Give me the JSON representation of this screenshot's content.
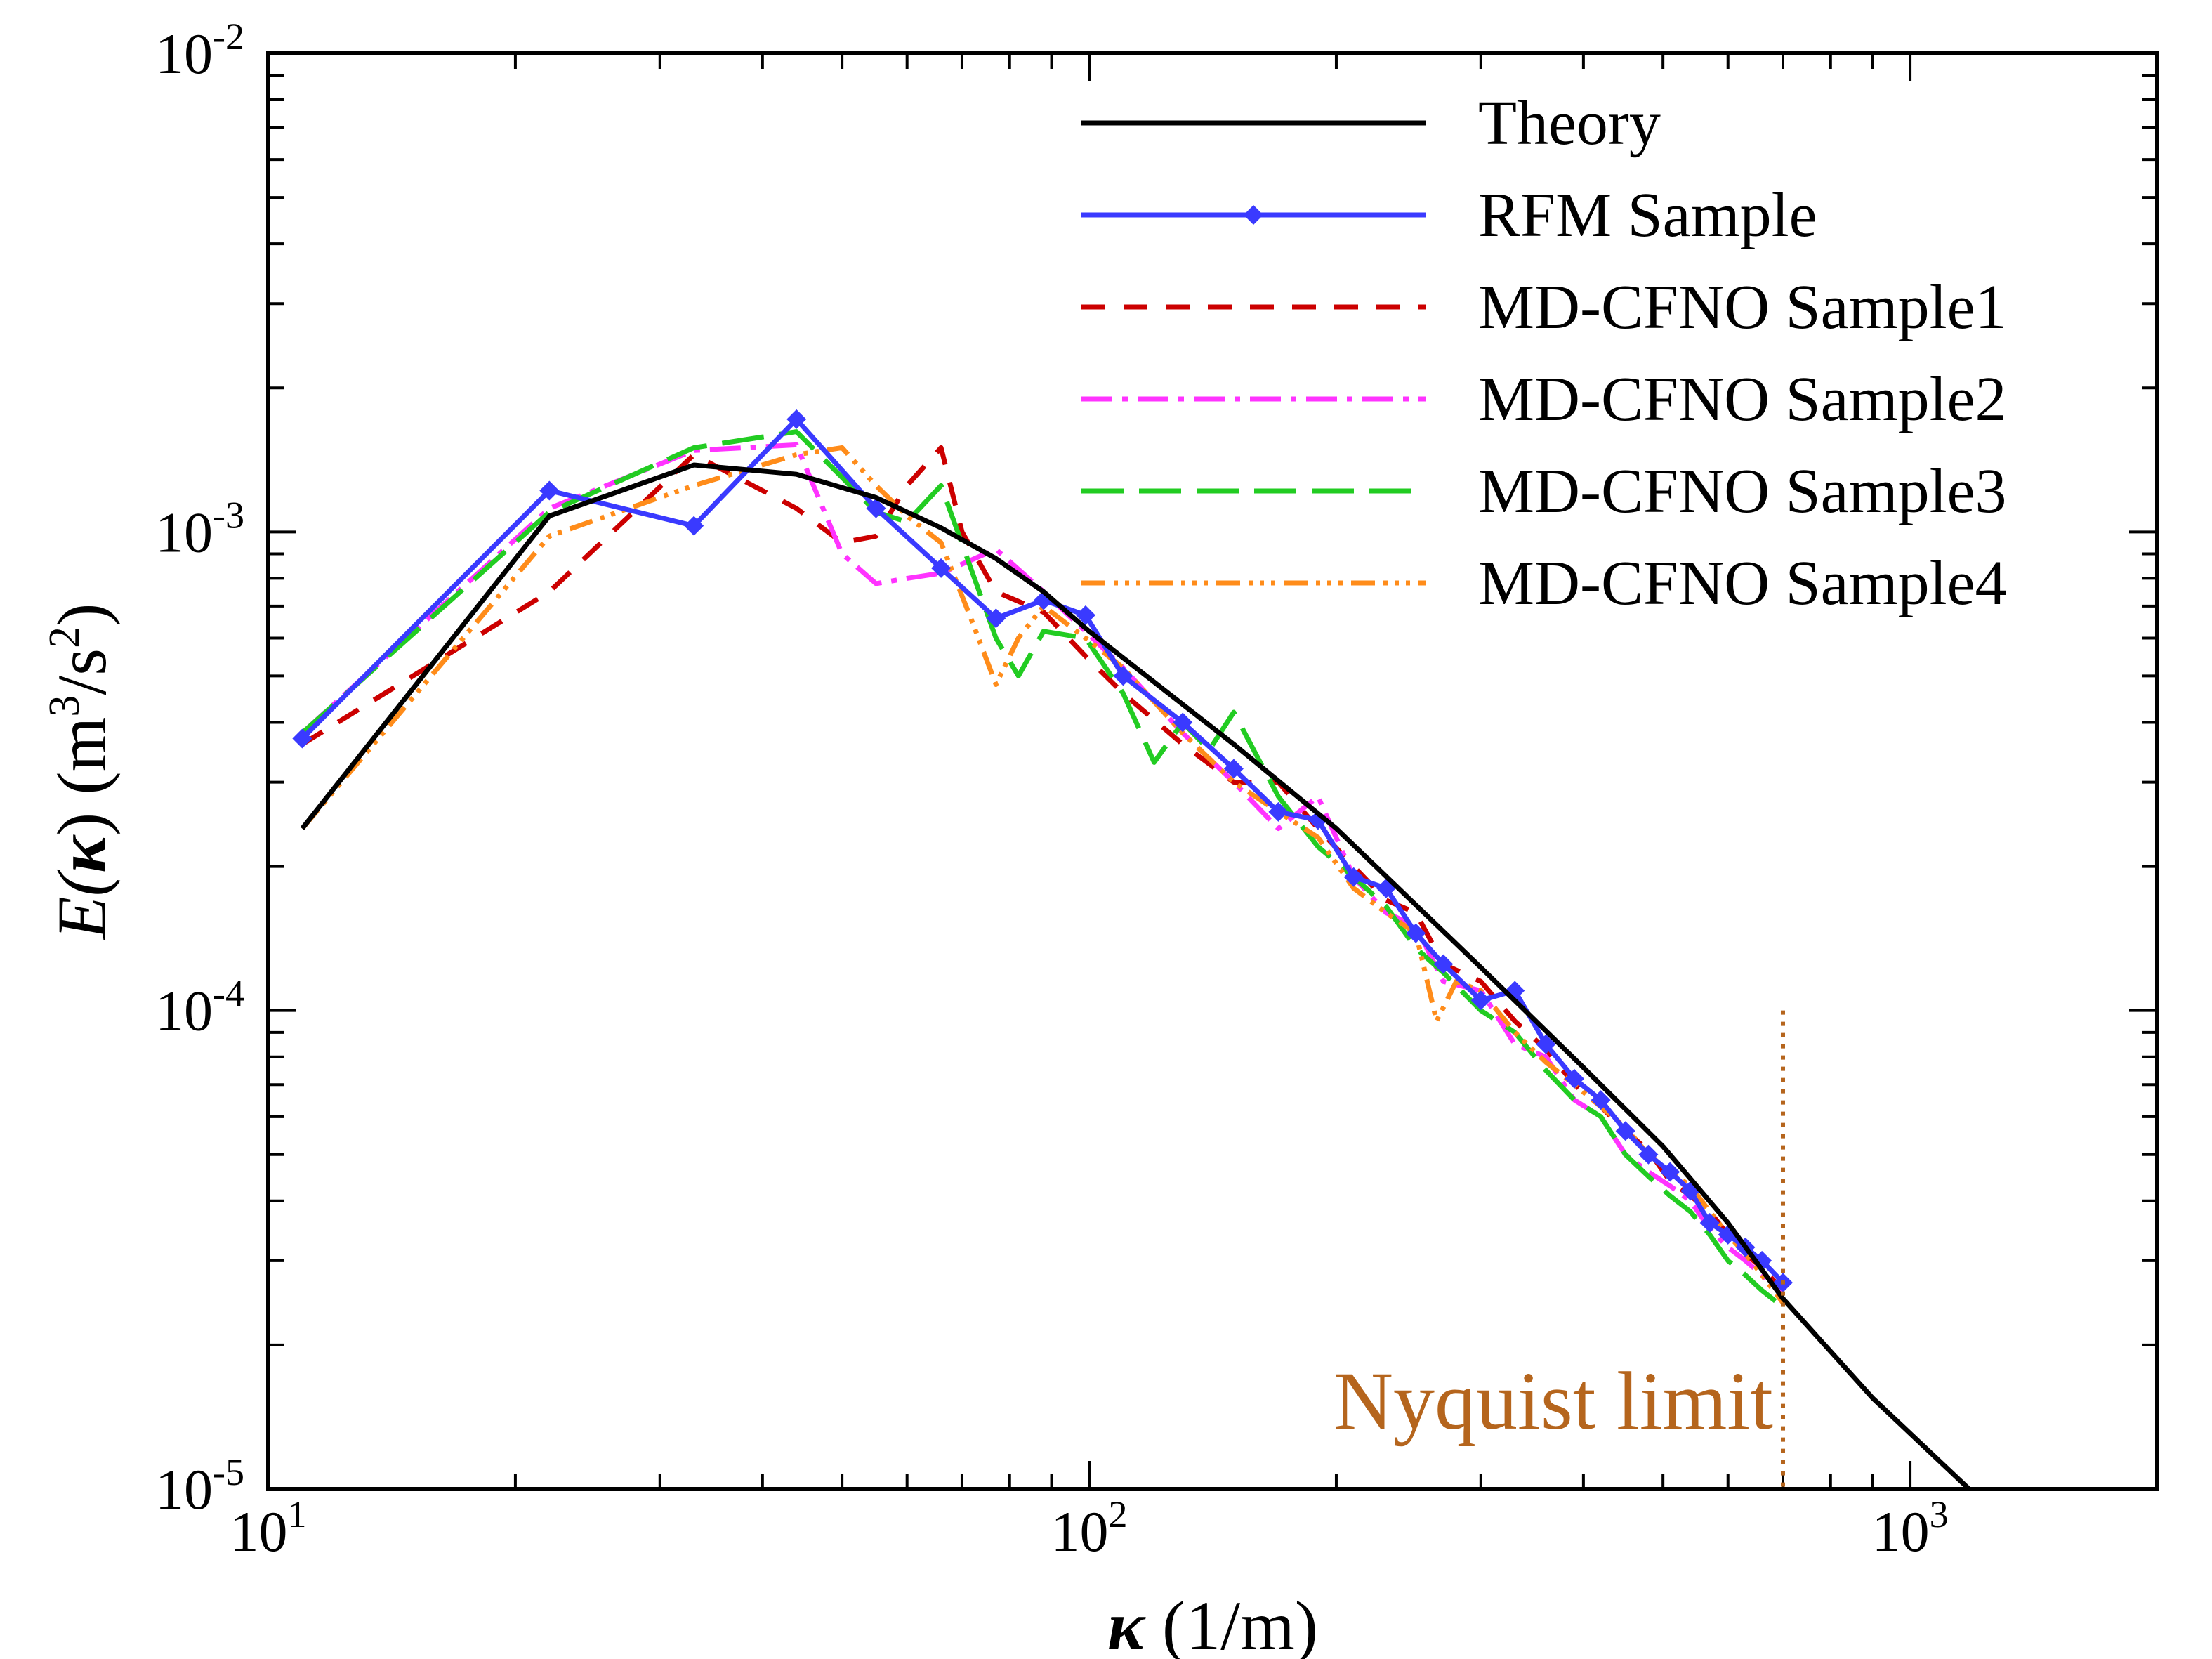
{
  "chart_data": {
    "type": "line",
    "title": "",
    "xscale": "log",
    "yscale": "log",
    "xlim": [
      10,
      2000
    ],
    "ylim": [
      1e-05,
      0.01
    ],
    "xlabel": {
      "symbol": "κ",
      "unit": " (1/m)"
    },
    "ylabel": {
      "main": "E(",
      "symbol": "κ",
      "close": ") (m",
      "sup1": "3",
      "mid": "/s",
      "sup2": "2",
      "end": ")"
    },
    "grid": false,
    "legend_position": "top-right",
    "x_major_ticks": [
      {
        "value": 10,
        "base": "10",
        "exp": "1"
      },
      {
        "value": 100,
        "base": "10",
        "exp": "2"
      },
      {
        "value": 1000,
        "base": "10",
        "exp": "3"
      }
    ],
    "y_major_ticks": [
      {
        "value": 1e-05,
        "base": "10",
        "exp": "-5"
      },
      {
        "value": 0.0001,
        "base": "10",
        "exp": "-4"
      },
      {
        "value": 0.001,
        "base": "10",
        "exp": "-3"
      },
      {
        "value": 0.01,
        "base": "10",
        "exp": "-2"
      }
    ],
    "annotation": {
      "text": "Nyquist limit",
      "x": 700,
      "color": "#b5651d",
      "line_y_range": [
        1e-05,
        0.0001
      ]
    },
    "series": [
      {
        "name": "Theory",
        "color": "#000000",
        "dash": "",
        "marker": false,
        "x": [
          11,
          22,
          33,
          44,
          55,
          66,
          77,
          88,
          100,
          150,
          200,
          300,
          400,
          500,
          600,
          700,
          900,
          1180
        ],
        "y": [
          0.00024,
          0.00108,
          0.00138,
          0.00132,
          0.00118,
          0.00102,
          0.00088,
          0.00075,
          0.00062,
          0.00036,
          0.00024,
          0.000123,
          7.6e-05,
          5.2e-05,
          3.6e-05,
          2.5e-05,
          1.55e-05,
          1e-05
        ]
      },
      {
        "name": "RFM Sample",
        "color": "#3a3aff",
        "dash": "",
        "marker": true,
        "x": [
          11,
          22,
          33,
          44,
          55,
          66,
          77,
          88,
          99,
          110,
          130,
          150,
          170,
          190,
          210,
          230,
          250,
          270,
          300,
          330,
          360,
          390,
          420,
          450,
          480,
          510,
          540,
          570,
          600,
          630,
          660,
          700
        ],
        "y": [
          0.00037,
          0.00122,
          0.00103,
          0.00172,
          0.00112,
          0.00084,
          0.00066,
          0.00072,
          0.00067,
          0.0005,
          0.0004,
          0.00032,
          0.00026,
          0.00025,
          0.00019,
          0.00018,
          0.000145,
          0.000125,
          0.000105,
          0.00011,
          8.5e-05,
          7.2e-05,
          6.5e-05,
          5.6e-05,
          5e-05,
          4.6e-05,
          4.2e-05,
          3.6e-05,
          3.4e-05,
          3.2e-05,
          3e-05,
          2.7e-05
        ]
      },
      {
        "name": "MD-CFNO Sample1",
        "color": "#cc0000",
        "dash": "34,26",
        "marker": false,
        "x": [
          11,
          22,
          33,
          44,
          50,
          55,
          60,
          66,
          70,
          77,
          88,
          99,
          110,
          130,
          150,
          170,
          190,
          210,
          230,
          250,
          270,
          300,
          330,
          360,
          390,
          420,
          450,
          480,
          510,
          540,
          570,
          600,
          630,
          660,
          700
        ],
        "y": [
          0.00036,
          0.00075,
          0.00145,
          0.00112,
          0.00095,
          0.00098,
          0.00125,
          0.0015,
          0.001,
          0.00075,
          0.00068,
          0.00055,
          0.00046,
          0.00036,
          0.0003,
          0.0003,
          0.00024,
          0.0002,
          0.00017,
          0.00016,
          0.000125,
          0.000115,
          9.5e-05,
          8.3e-05,
          7e-05,
          6.3e-05,
          5.6e-05,
          5.1e-05,
          4.4e-05,
          4.1e-05,
          3.8e-05,
          3.4e-05,
          3.1e-05,
          2.9e-05,
          2.6e-05
        ]
      },
      {
        "name": "MD-CFNO Sample2",
        "color": "#ff33ff",
        "dash": "44,14,8,14",
        "marker": false,
        "x": [
          11,
          22,
          33,
          44,
          50,
          55,
          60,
          66,
          77,
          88,
          99,
          110,
          130,
          150,
          170,
          190,
          210,
          230,
          250,
          270,
          300,
          330,
          360,
          390,
          420,
          450,
          480,
          510,
          540,
          570,
          600,
          630,
          660,
          700
        ],
        "y": [
          0.00038,
          0.00112,
          0.00148,
          0.00152,
          0.0009,
          0.00078,
          0.0008,
          0.00082,
          0.00092,
          0.00075,
          0.00062,
          0.00052,
          0.00038,
          0.0003,
          0.00024,
          0.00028,
          0.00019,
          0.00016,
          0.00015,
          0.000115,
          0.00011,
          8.5e-05,
          8e-05,
          6.5e-05,
          6e-05,
          5e-05,
          4.6e-05,
          4.3e-05,
          4e-05,
          3.5e-05,
          3.2e-05,
          3e-05,
          2.8e-05,
          2.55e-05
        ]
      },
      {
        "name": "MD-CFNO Sample3",
        "color": "#22cc22",
        "dash": "60,22",
        "marker": false,
        "x": [
          11,
          22,
          33,
          44,
          50,
          55,
          60,
          66,
          77,
          82,
          88,
          99,
          110,
          120,
          130,
          140,
          150,
          170,
          190,
          210,
          230,
          250,
          270,
          300,
          330,
          360,
          390,
          420,
          450,
          480,
          510,
          540,
          570,
          600,
          630,
          660,
          700
        ],
        "y": [
          0.00038,
          0.0011,
          0.0015,
          0.00162,
          0.0013,
          0.0011,
          0.00105,
          0.00125,
          0.0006,
          0.0005,
          0.00062,
          0.0006,
          0.00046,
          0.00033,
          0.0004,
          0.00035,
          0.00042,
          0.00028,
          0.00022,
          0.00019,
          0.000165,
          0.000135,
          0.00012,
          0.0001,
          9e-05,
          7.5e-05,
          6.5e-05,
          6e-05,
          5e-05,
          4.5e-05,
          4.1e-05,
          3.8e-05,
          3.4e-05,
          3e-05,
          2.8e-05,
          2.6e-05,
          2.4e-05
        ]
      },
      {
        "name": "MD-CFNO Sample4",
        "color": "#ff8c1a",
        "dash": "34,12,6,10,6,10,6,12",
        "marker": false,
        "x": [
          11,
          22,
          33,
          44,
          50,
          55,
          60,
          66,
          72,
          77,
          82,
          88,
          99,
          110,
          130,
          150,
          170,
          190,
          210,
          230,
          250,
          265,
          280,
          300,
          330,
          360,
          390,
          420,
          450,
          480,
          510,
          540,
          570,
          600,
          630,
          660,
          700
        ],
        "y": [
          0.00024,
          0.00098,
          0.00125,
          0.00145,
          0.0015,
          0.00125,
          0.00108,
          0.00095,
          0.00065,
          0.00048,
          0.0006,
          0.0007,
          0.0006,
          0.00052,
          0.00038,
          0.0003,
          0.00026,
          0.00023,
          0.00018,
          0.00016,
          0.000145,
          9.5e-05,
          0.000115,
          0.00011,
          9e-05,
          7.8e-05,
          7e-05,
          6.3e-05,
          5.7e-05,
          5e-05,
          4.6e-05,
          4.3e-05,
          3.8e-05,
          3.4e-05,
          3.1e-05,
          2.8e-05,
          2.45e-05
        ]
      }
    ]
  }
}
